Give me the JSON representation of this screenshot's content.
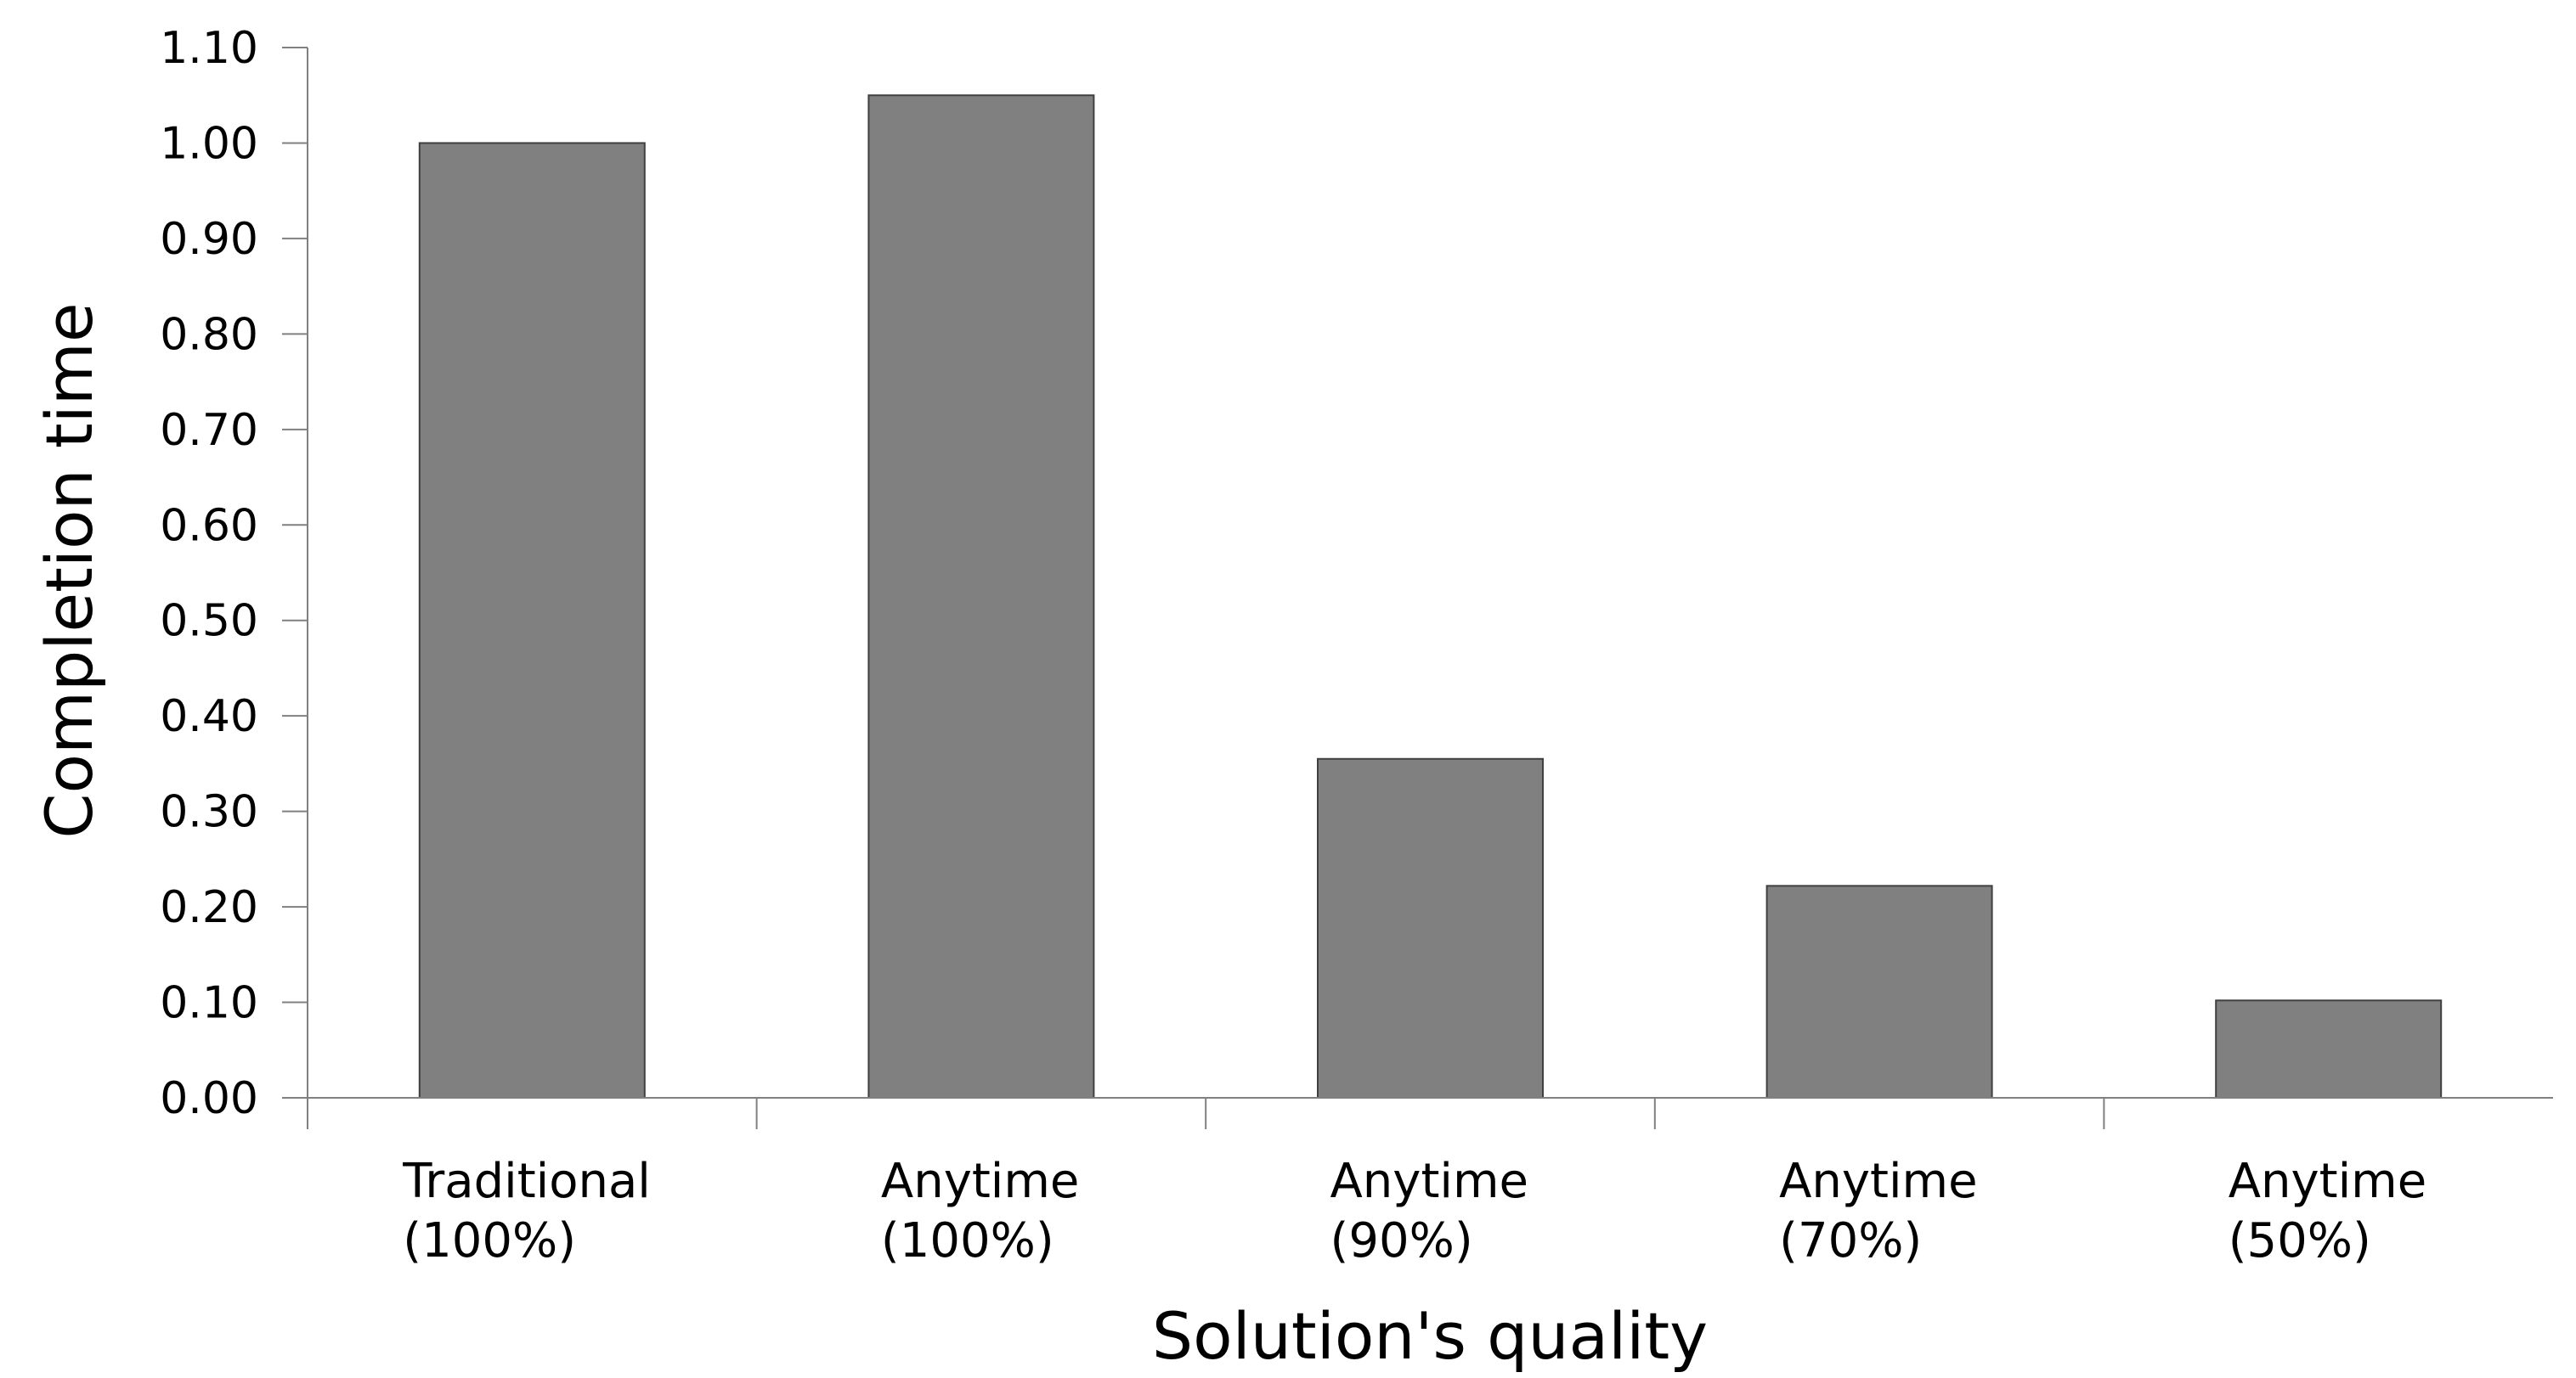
{
  "chart_data": {
    "type": "bar",
    "categories": [
      [
        "Traditional",
        "(100%)"
      ],
      [
        "Anytime",
        "(100%)"
      ],
      [
        "Anytime",
        "(90%)"
      ],
      [
        "Anytime",
        "(70%)"
      ],
      [
        "Anytime",
        "(50%)"
      ]
    ],
    "values": [
      1.0,
      1.05,
      0.355,
      0.222,
      0.102
    ],
    "title": "",
    "xlabel": "Solution's quality",
    "ylabel": "Completion time",
    "ylim": [
      0,
      1.1
    ],
    "yticks": [
      "0.00",
      "0.10",
      "0.20",
      "0.30",
      "0.40",
      "0.50",
      "0.60",
      "0.70",
      "0.80",
      "0.90",
      "1.00",
      "1.10"
    ],
    "bar_color": "#808080",
    "bar_edge_color": "#404040",
    "axis_color": "#808080",
    "grid": false,
    "legend": "none"
  }
}
